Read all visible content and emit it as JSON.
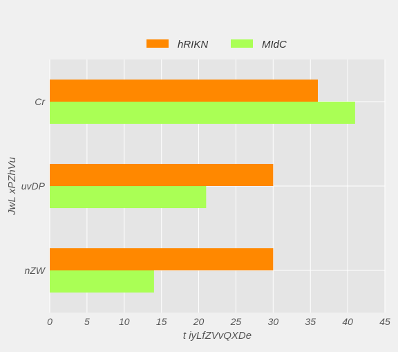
{
  "chart_data": {
    "type": "bar",
    "orientation": "horizontal",
    "title": "",
    "xlabel": "t iyLfZVvQXDe",
    "ylabel": "JwL xPZhVu",
    "categories": [
      "Cr",
      "uvDP",
      "nZW"
    ],
    "series": [
      {
        "name": "hRIKN",
        "color": "#ff8800",
        "values": [
          36,
          30,
          30
        ]
      },
      {
        "name": "MIdC",
        "color": "#aaff55",
        "values": [
          41,
          21,
          14
        ]
      }
    ],
    "xlim": [
      0,
      45
    ],
    "xticks": [
      "0",
      "5",
      "10",
      "15",
      "20",
      "25",
      "30",
      "35",
      "40",
      "45"
    ],
    "grid": true,
    "legend_position": "top-center",
    "plot_background": "#e5e5e5",
    "grid_color": "#ffffff"
  }
}
